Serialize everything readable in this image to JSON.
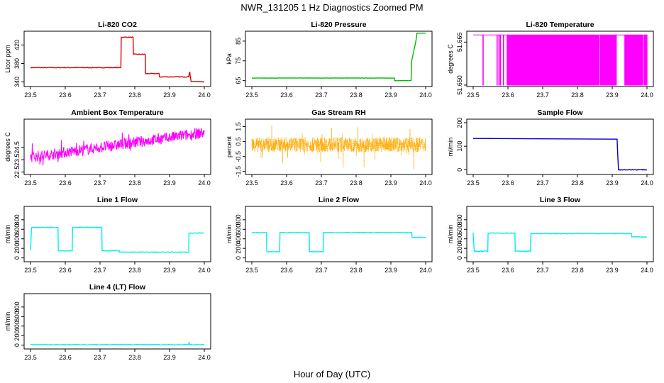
{
  "title": "NWR_131205  1 Hz Diagnostics Zoomed PM",
  "xlabel": "Hour of Day (UTC)",
  "chart_data": [
    {
      "type": "line",
      "title": "Li-820 CO2",
      "ylabel": "Licor ppm",
      "color": "#dd0000",
      "xlim": [
        23.5,
        24.0
      ],
      "ylim": [
        330,
        450
      ],
      "x_ticks": [
        "23.5",
        "23.6",
        "23.7",
        "23.8",
        "23.9",
        "24.0"
      ],
      "y_ticks": [
        340,
        380,
        420
      ],
      "x": [
        23.5,
        23.76,
        23.761,
        23.795,
        23.796,
        23.83,
        23.831,
        23.87,
        23.871,
        23.955,
        23.958,
        23.96,
        23.962,
        24.0
      ],
      "values": [
        371,
        371,
        437,
        437,
        400,
        400,
        358,
        358,
        351,
        351,
        362,
        350,
        341,
        340
      ]
    },
    {
      "type": "line",
      "title": "Li-820 Pressure",
      "ylabel": "kPa",
      "color": "#00bb00",
      "xlim": [
        23.5,
        24.0
      ],
      "ylim": [
        62,
        90
      ],
      "x_ticks": [
        "23.5",
        "23.6",
        "23.7",
        "23.8",
        "23.9",
        "24.0"
      ],
      "y_ticks": [
        65,
        75,
        85
      ],
      "x": [
        23.5,
        23.91,
        23.911,
        23.958,
        23.96,
        23.972,
        23.975,
        24.0
      ],
      "values": [
        66.3,
        66.3,
        65,
        65,
        75,
        85,
        89,
        89
      ]
    },
    {
      "type": "line",
      "title": "Li-820 Temperature",
      "ylabel": "degrees C",
      "color": "#ff00ff",
      "xlim": [
        23.5,
        24.0
      ],
      "ylim": [
        51.6495,
        51.6688
      ],
      "x_ticks": [
        "23.5",
        "23.6",
        "23.7",
        "23.8",
        "23.9",
        "24.0"
      ],
      "y_ticks": [
        "51.650",
        "51.665"
      ],
      "values_low": 51.65,
      "values_high": 51.6675
    },
    {
      "type": "line",
      "title": "Ambient Box Temperature",
      "ylabel": "degrees C",
      "color": "#ff00ff",
      "xlim": [
        23.5,
        24.0
      ],
      "ylim": [
        22.3,
        26.8
      ],
      "x_ticks": [
        "23.5",
        "23.6",
        "23.7",
        "23.8",
        "23.9",
        "24.0"
      ],
      "y_ticks": [
        22.5,
        23.5,
        24.5
      ],
      "x": [
        23.5,
        24.0
      ],
      "values": [
        23.7,
        25.7
      ]
    },
    {
      "type": "scatter",
      "title": "Gas Stream RH",
      "ylabel": "percent",
      "color": "#ffaa00",
      "xlim": [
        23.5,
        24.0
      ],
      "ylim": [
        -1.7,
        2.0
      ],
      "x_ticks": [
        "23.5",
        "23.6",
        "23.7",
        "23.8",
        "23.9",
        "24.0"
      ],
      "y_ticks": [
        -1.5,
        -0.5,
        0.5,
        1.5
      ],
      "x": [
        23.5,
        24.0
      ],
      "values": [
        0.3,
        0.3
      ]
    },
    {
      "type": "line",
      "title": "Sample Flow",
      "ylabel": "ml/min",
      "color": "#0000cc",
      "xlim": [
        23.5,
        24.0
      ],
      "ylim": [
        -20,
        215
      ],
      "x_ticks": [
        "23.5",
        "23.6",
        "23.7",
        "23.8",
        "23.9",
        "24.0"
      ],
      "y_ticks": [
        0,
        100,
        200
      ],
      "x": [
        23.5,
        23.914,
        23.916,
        23.918,
        24.0
      ],
      "values": [
        133,
        130,
        60,
        0,
        0
      ]
    },
    {
      "type": "line",
      "title": "Line 1 Flow",
      "ylabel": "ml/min",
      "color": "#00eeee",
      "xlim": [
        23.5,
        24.0
      ],
      "ylim": [
        -80,
        1080
      ],
      "x_ticks": [
        "23.5",
        "23.6",
        "23.7",
        "23.8",
        "23.9",
        "24.0"
      ],
      "y_ticks": [
        0,
        200,
        400,
        600,
        800
      ],
      "x": [
        23.5,
        23.503,
        23.579,
        23.58,
        23.62,
        23.621,
        23.705,
        23.706,
        23.755,
        23.756,
        23.955,
        23.956,
        24.0
      ],
      "values": [
        160,
        640,
        640,
        150,
        150,
        640,
        640,
        150,
        150,
        120,
        120,
        520,
        520
      ]
    },
    {
      "type": "line",
      "title": "Line 2 Flow",
      "ylabel": "ml/min",
      "color": "#00eeee",
      "xlim": [
        23.5,
        24.0
      ],
      "ylim": [
        -80,
        1080
      ],
      "x_ticks": [
        "23.5",
        "23.6",
        "23.7",
        "23.8",
        "23.9",
        "24.0"
      ],
      "y_ticks": [
        0,
        200,
        400,
        600,
        800
      ],
      "x": [
        23.5,
        23.542,
        23.543,
        23.58,
        23.581,
        23.665,
        23.666,
        23.705,
        23.706,
        23.96,
        23.961,
        24.0
      ],
      "values": [
        530,
        530,
        130,
        130,
        530,
        530,
        130,
        130,
        530,
        530,
        430,
        430
      ]
    },
    {
      "type": "line",
      "title": "Line 3 Flow",
      "ylabel": "ml/min",
      "color": "#00eeee",
      "xlim": [
        23.5,
        24.0
      ],
      "ylim": [
        -80,
        1080
      ],
      "x_ticks": [
        "23.5",
        "23.6",
        "23.7",
        "23.8",
        "23.9",
        "24.0"
      ],
      "y_ticks": [
        0,
        200,
        400,
        600,
        800
      ],
      "x": [
        23.5,
        23.503,
        23.542,
        23.543,
        23.62,
        23.621,
        23.665,
        23.666,
        23.955,
        23.956,
        24.0
      ],
      "values": [
        530,
        140,
        140,
        520,
        520,
        140,
        140,
        510,
        510,
        440,
        440
      ]
    },
    {
      "type": "line",
      "title": "Line 4 (LT) Flow",
      "ylabel": "ml/min",
      "color": "#00eeee",
      "xlim": [
        23.5,
        24.0
      ],
      "ylim": [
        -80,
        1080
      ],
      "x_ticks": [
        "23.5",
        "23.6",
        "23.7",
        "23.8",
        "23.9",
        "24.0"
      ],
      "y_ticks": [
        0,
        200,
        400,
        600,
        800
      ],
      "x": [
        23.5,
        23.954,
        23.956,
        23.958,
        24.0
      ],
      "values": [
        10,
        10,
        50,
        10,
        10
      ]
    }
  ]
}
